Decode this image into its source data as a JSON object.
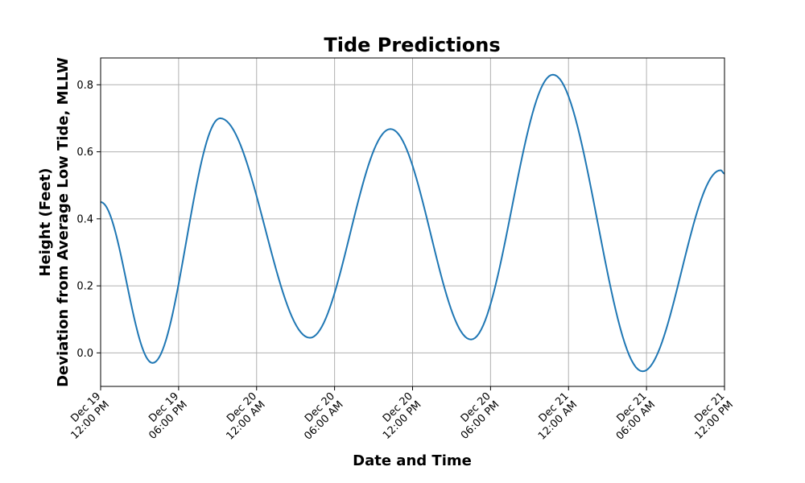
{
  "chart_data": {
    "type": "line",
    "title": "Tide Predictions",
    "xlabel": "Date and Time",
    "ylabel_line1": "Height (Feet)",
    "ylabel_line2": "Deviation from Average Low Tide, MLLW",
    "xlim": [
      "2024-12-19 12:00",
      "2024-12-21 12:00"
    ],
    "ylim": [
      -0.1,
      0.88
    ],
    "grid": true,
    "x_ticks": [
      {
        "date": "2024-12-19 12:00",
        "line1": "Dec 19",
        "line2": "12:00 PM"
      },
      {
        "date": "2024-12-19 18:00",
        "line1": "Dec 19",
        "line2": "06:00 PM"
      },
      {
        "date": "2024-12-20 00:00",
        "line1": "Dec 20",
        "line2": "12:00 AM"
      },
      {
        "date": "2024-12-20 06:00",
        "line1": "Dec 20",
        "line2": "06:00 AM"
      },
      {
        "date": "2024-12-20 12:00",
        "line1": "Dec 20",
        "line2": "12:00 PM"
      },
      {
        "date": "2024-12-20 18:00",
        "line1": "Dec 20",
        "line2": "06:00 PM"
      },
      {
        "date": "2024-12-21 00:00",
        "line1": "Dec 21",
        "line2": "12:00 AM"
      },
      {
        "date": "2024-12-21 06:00",
        "line1": "Dec 21",
        "line2": "06:00 AM"
      },
      {
        "date": "2024-12-21 12:00",
        "line1": "Dec 21",
        "line2": "12:00 PM"
      }
    ],
    "y_ticks": [
      {
        "value": 0.0,
        "label": "0.0"
      },
      {
        "value": 0.2,
        "label": "0.2"
      },
      {
        "value": 0.4,
        "label": "0.4"
      },
      {
        "value": 0.6,
        "label": "0.6"
      },
      {
        "value": 0.8,
        "label": "0.8"
      }
    ],
    "series": [
      {
        "color": "#1f77b4",
        "points": [
          {
            "x": "2024-12-19 12:00",
            "y": 0.45
          },
          {
            "x": "2024-12-19 16:00",
            "y": -0.03
          },
          {
            "x": "2024-12-19 21:12",
            "y": 0.7
          },
          {
            "x": "2024-12-20 04:06",
            "y": 0.045
          },
          {
            "x": "2024-12-20 10:18",
            "y": 0.668
          },
          {
            "x": "2024-12-20 16:30",
            "y": 0.04
          },
          {
            "x": "2024-12-20 22:48",
            "y": 0.83
          },
          {
            "x": "2024-12-21 05:42",
            "y": -0.055
          },
          {
            "x": "2024-12-21 11:42",
            "y": 0.545
          },
          {
            "x": "2024-12-21 12:00",
            "y": 0.535
          }
        ]
      }
    ]
  }
}
